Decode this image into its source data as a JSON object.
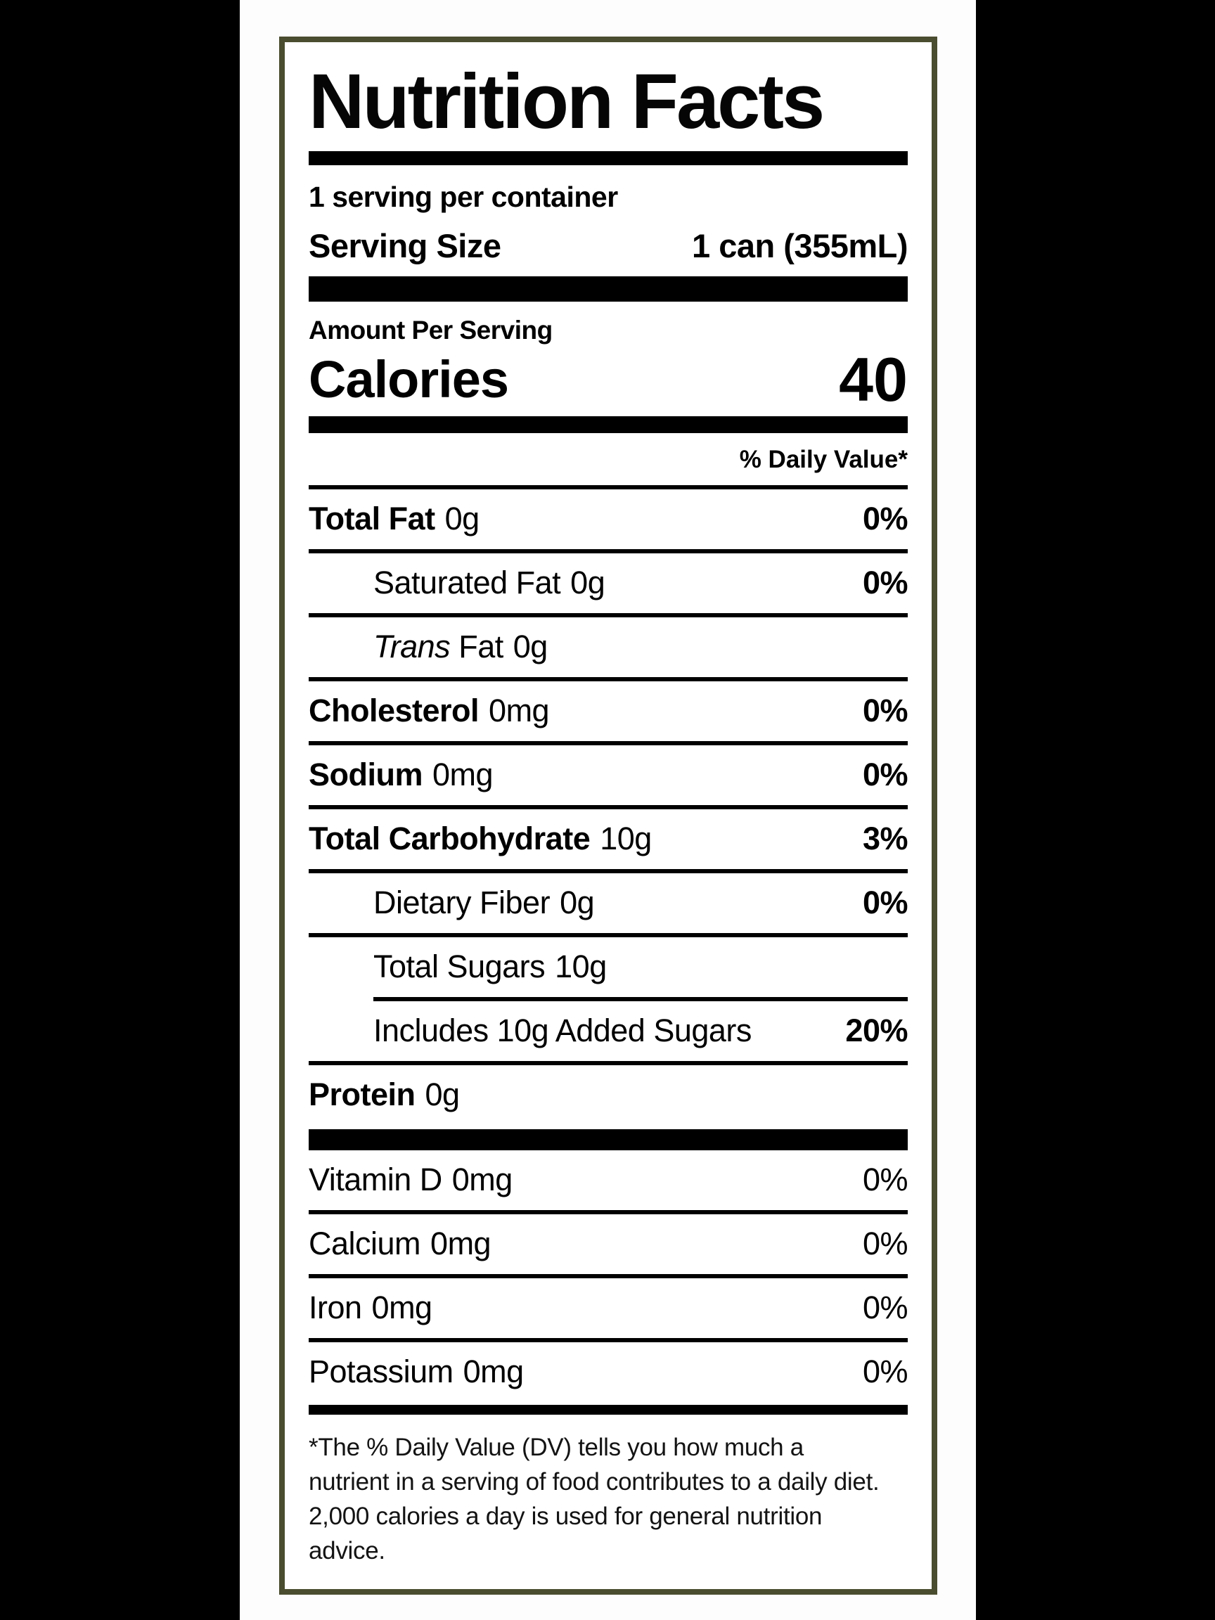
{
  "header": {
    "title": "Nutrition Facts",
    "servings_per_container": "1 serving per container",
    "serving_size_label": "Serving Size",
    "serving_size_value": "1 can (355mL)"
  },
  "calories": {
    "amount_per_serving_label": "Amount Per Serving",
    "label": "Calories",
    "value": "40"
  },
  "daily_value_header": "% Daily Value*",
  "nutrients": {
    "total_fat": {
      "name": "Total Fat",
      "amount": "0g",
      "dv": "0%"
    },
    "saturated_fat": {
      "name": "Saturated Fat",
      "amount": "0g",
      "dv": "0%"
    },
    "trans_fat": {
      "name_italic": "Trans",
      "name": "Fat",
      "amount": "0g"
    },
    "cholesterol": {
      "name": "Cholesterol",
      "amount": "0mg",
      "dv": "0%"
    },
    "sodium": {
      "name": "Sodium",
      "amount": "0mg",
      "dv": "0%"
    },
    "total_carbohydrate": {
      "name": "Total Carbohydrate",
      "amount": "10g",
      "dv": "3%"
    },
    "dietary_fiber": {
      "name": "Dietary Fiber",
      "amount": "0g",
      "dv": "0%"
    },
    "total_sugars": {
      "name": "Total Sugars",
      "amount": "10g"
    },
    "added_sugars": {
      "name": "Includes 10g Added Sugars",
      "dv": "20%"
    },
    "protein": {
      "name": "Protein",
      "amount": "0g"
    }
  },
  "vitamins": {
    "vitamin_d": {
      "name": "Vitamin D",
      "amount": "0mg",
      "dv": "0%"
    },
    "calcium": {
      "name": "Calcium",
      "amount": "0mg",
      "dv": "0%"
    },
    "iron": {
      "name": "Iron",
      "amount": "0mg",
      "dv": "0%"
    },
    "potassium": {
      "name": "Potassium",
      "amount": "0mg",
      "dv": "0%"
    }
  },
  "footnote": "*The % Daily Value (DV) tells you how much a nutrient in a serving of food contributes to a daily diet. 2,000 calories a day is used for general nutrition advice.",
  "colors": {
    "border": "#4a4d2f",
    "bar": "#000000",
    "background": "#000000",
    "panel": "#ffffff"
  }
}
